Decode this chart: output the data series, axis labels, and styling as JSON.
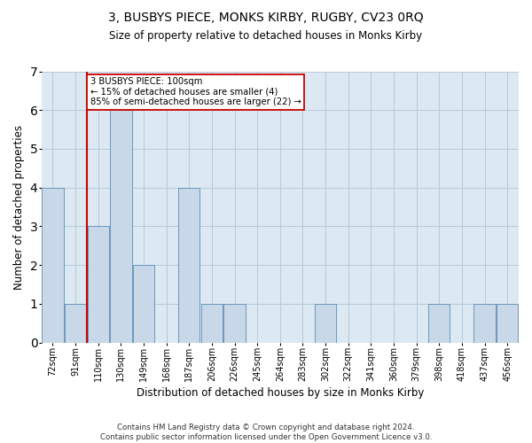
{
  "title": "3, BUSBYS PIECE, MONKS KIRBY, RUGBY, CV23 0RQ",
  "subtitle": "Size of property relative to detached houses in Monks Kirby",
  "xlabel": "Distribution of detached houses by size in Monks Kirby",
  "ylabel": "Number of detached properties",
  "categories": [
    "72sqm",
    "91sqm",
    "110sqm",
    "130sqm",
    "149sqm",
    "168sqm",
    "187sqm",
    "206sqm",
    "226sqm",
    "245sqm",
    "264sqm",
    "283sqm",
    "302sqm",
    "322sqm",
    "341sqm",
    "360sqm",
    "379sqm",
    "398sqm",
    "418sqm",
    "437sqm",
    "456sqm"
  ],
  "values": [
    4,
    1,
    3,
    6,
    2,
    0,
    4,
    1,
    1,
    0,
    0,
    0,
    1,
    0,
    0,
    0,
    0,
    1,
    0,
    1,
    1
  ],
  "bar_color": "#c8d8e8",
  "bar_edge_color": "#5a8db5",
  "subject_line_color": "#cc0000",
  "annotation_text": "3 BUSBYS PIECE: 100sqm\n← 15% of detached houses are smaller (4)\n85% of semi-detached houses are larger (22) →",
  "annotation_box_color": "#ffffff",
  "annotation_box_edge": "#cc0000",
  "ylim": [
    0,
    7
  ],
  "yticks": [
    0,
    1,
    2,
    3,
    4,
    5,
    6,
    7
  ],
  "footer": "Contains HM Land Registry data © Crown copyright and database right 2024.\nContains public sector information licensed under the Open Government Licence v3.0.",
  "background_color": "#ffffff",
  "plot_bg_color": "#dce8f2",
  "grid_color": "#b8cad8"
}
